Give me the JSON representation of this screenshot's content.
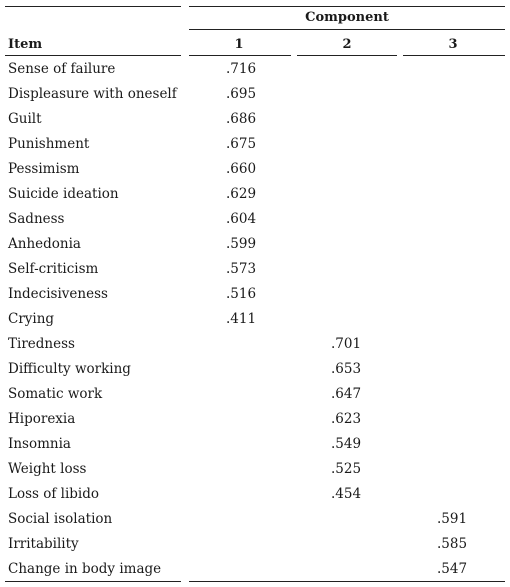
{
  "table": {
    "header": {
      "group": "Component",
      "item": "Item",
      "columns": [
        "1",
        "2",
        "3"
      ]
    },
    "rows": [
      {
        "item": "Sense of failure",
        "c1": ".716",
        "c2": "",
        "c3": ""
      },
      {
        "item": "Displeasure with oneself",
        "c1": ".695",
        "c2": "",
        "c3": ""
      },
      {
        "item": "Guilt",
        "c1": ".686",
        "c2": "",
        "c3": ""
      },
      {
        "item": "Punishment",
        "c1": ".675",
        "c2": "",
        "c3": ""
      },
      {
        "item": "Pessimism",
        "c1": ".660",
        "c2": "",
        "c3": ""
      },
      {
        "item": "Suicide ideation",
        "c1": ".629",
        "c2": "",
        "c3": ""
      },
      {
        "item": "Sadness",
        "c1": ".604",
        "c2": "",
        "c3": ""
      },
      {
        "item": "Anhedonia",
        "c1": ".599",
        "c2": "",
        "c3": ""
      },
      {
        "item": "Self-criticism",
        "c1": ".573",
        "c2": "",
        "c3": ""
      },
      {
        "item": "Indecisiveness",
        "c1": ".516",
        "c2": "",
        "c3": ""
      },
      {
        "item": "Crying",
        "c1": ".411",
        "c2": "",
        "c3": ""
      },
      {
        "item": "Tiredness",
        "c1": "",
        "c2": ".701",
        "c3": ""
      },
      {
        "item": "Difficulty working",
        "c1": "",
        "c2": ".653",
        "c3": ""
      },
      {
        "item": "Somatic work",
        "c1": "",
        "c2": ".647",
        "c3": ""
      },
      {
        "item": "Hiporexia",
        "c1": "",
        "c2": ".623",
        "c3": ""
      },
      {
        "item": "Insomnia",
        "c1": "",
        "c2": ".549",
        "c3": ""
      },
      {
        "item": "Weight loss",
        "c1": "",
        "c2": ".525",
        "c3": ""
      },
      {
        "item": "Loss of libido",
        "c1": "",
        "c2": ".454",
        "c3": ""
      },
      {
        "item": "Social isolation",
        "c1": "",
        "c2": "",
        "c3": ".591"
      },
      {
        "item": "Irritability",
        "c1": "",
        "c2": "",
        "c3": ".585"
      },
      {
        "item": "Change in body image",
        "c1": "",
        "c2": "",
        "c3": ".547"
      }
    ]
  }
}
